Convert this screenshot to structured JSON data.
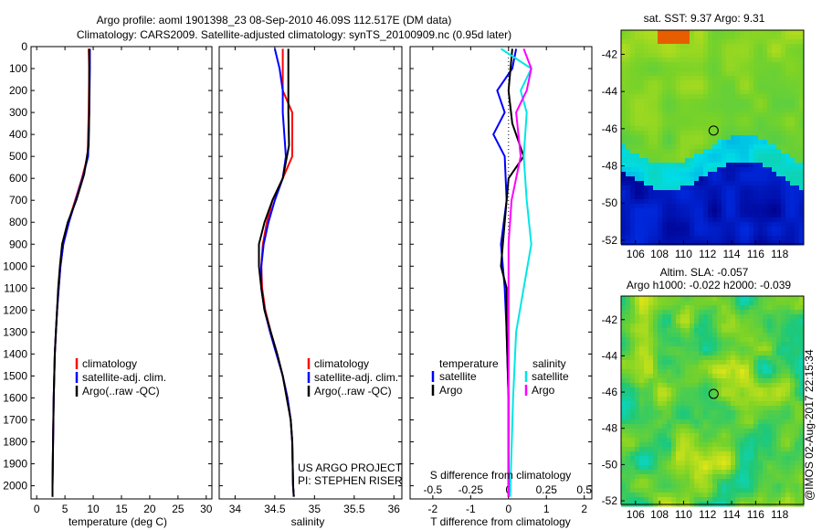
{
  "header": {
    "title_line1": "Argo profile: aoml 1901398_23 08-Sep-2010 46.09S 112.517E (DM data)",
    "title_line2": "Climatology: CARS2009. Satellite-adjusted climatology: synTS_20100909.nc (0.95d later)"
  },
  "colors": {
    "climatology": "#ff0000",
    "satellite": "#0000ff",
    "argo": "#000000",
    "salinity_satellite": "#00e6e6",
    "salinity_argo": "#ff00ff"
  },
  "sst_map_title": "sat. SST: 9.37 Argo: 9.31",
  "sla_map_title_line1": "Altim. SLA: -0.057",
  "sla_map_title_line2": "Argo h1000: -0.022 h2000: -0.039",
  "credit": "@IMOS 02-Aug-2017 22:15:34",
  "project_line1": "US ARGO PROJECT",
  "project_line2": "PI: STEPHEN RISER",
  "legend_temp": [
    "climatology",
    "satellite-adj. clim.",
    "Argo(..raw -QC)"
  ],
  "legend_sal": [
    "climatology",
    "satellite-adj. clim.",
    "Argo(..raw -QC)"
  ],
  "legend_diff": {
    "temperature_header": "temperature",
    "salinity_header": "salinity",
    "satellite": "satellite",
    "argo": "Argo"
  },
  "diff_top_label": "S difference from climatology",
  "chart_data": [
    {
      "type": "line",
      "xlabel": "temperature (deg C)",
      "ylabel": "",
      "xlim": [
        -1,
        31
      ],
      "ylim": [
        2060,
        0
      ],
      "xticks": [
        0,
        5,
        10,
        15,
        20,
        25,
        30
      ],
      "yticks": [
        0,
        100,
        200,
        300,
        400,
        500,
        600,
        700,
        800,
        900,
        1000,
        1100,
        1200,
        1300,
        1400,
        1500,
        1600,
        1700,
        1800,
        1900,
        2000
      ],
      "series": [
        {
          "name": "climatology",
          "points": [
            [
              9.2,
              10
            ],
            [
              9.3,
              100
            ],
            [
              9.2,
              300
            ],
            [
              9.0,
              500
            ],
            [
              8.0,
              600
            ],
            [
              6.8,
              700
            ],
            [
              5.6,
              800
            ],
            [
              4.7,
              900
            ],
            [
              4.2,
              1000
            ],
            [
              3.9,
              1100
            ],
            [
              3.6,
              1200
            ],
            [
              3.4,
              1300
            ],
            [
              3.2,
              1400
            ],
            [
              3.0,
              1600
            ],
            [
              2.9,
              1800
            ],
            [
              2.8,
              2000
            ],
            [
              2.8,
              2050
            ]
          ]
        },
        {
          "name": "satellite-adj. clim.",
          "points": [
            [
              9.4,
              10
            ],
            [
              9.4,
              100
            ],
            [
              9.3,
              300
            ],
            [
              9.1,
              500
            ],
            [
              8.1,
              600
            ],
            [
              6.9,
              700
            ],
            [
              5.7,
              800
            ],
            [
              4.7,
              900
            ],
            [
              4.2,
              1000
            ],
            [
              3.9,
              1100
            ],
            [
              3.6,
              1200
            ],
            [
              3.4,
              1300
            ],
            [
              3.2,
              1400
            ],
            [
              3.0,
              1600
            ],
            [
              2.9,
              1800
            ],
            [
              2.8,
              2000
            ],
            [
              2.8,
              2050
            ]
          ]
        },
        {
          "name": "Argo(..raw -QC)",
          "points": [
            [
              9.3,
              10
            ],
            [
              9.3,
              100
            ],
            [
              9.3,
              300
            ],
            [
              9.2,
              450
            ],
            [
              8.4,
              580
            ],
            [
              7.0,
              700
            ],
            [
              5.5,
              800
            ],
            [
              4.5,
              900
            ],
            [
              4.1,
              1000
            ],
            [
              3.8,
              1100
            ],
            [
              3.6,
              1200
            ],
            [
              3.4,
              1300
            ],
            [
              3.2,
              1400
            ],
            [
              3.0,
              1600
            ],
            [
              2.9,
              1800
            ],
            [
              2.8,
              2000
            ],
            [
              2.8,
              2050
            ]
          ]
        }
      ]
    },
    {
      "type": "line",
      "xlabel": "salinity",
      "ylabel": "",
      "xlim": [
        33.8,
        36.1
      ],
      "ylim": [
        2060,
        0
      ],
      "xticks": [
        34,
        34.5,
        35,
        35.5,
        36
      ],
      "series": [
        {
          "name": "climatology",
          "points": [
            [
              34.6,
              10
            ],
            [
              34.6,
              100
            ],
            [
              34.6,
              200
            ],
            [
              34.72,
              300
            ],
            [
              34.72,
              500
            ],
            [
              34.6,
              600
            ],
            [
              34.47,
              700
            ],
            [
              34.4,
              800
            ],
            [
              34.35,
              900
            ],
            [
              34.33,
              1000
            ],
            [
              34.34,
              1100
            ],
            [
              34.38,
              1200
            ],
            [
              34.45,
              1300
            ],
            [
              34.53,
              1400
            ],
            [
              34.6,
              1500
            ],
            [
              34.66,
              1600
            ],
            [
              34.7,
              1700
            ],
            [
              34.72,
              1800
            ],
            [
              34.73,
              2000
            ],
            [
              34.74,
              2050
            ]
          ]
        },
        {
          "name": "satellite-adj. clim.",
          "points": [
            [
              34.5,
              10
            ],
            [
              34.56,
              100
            ],
            [
              34.6,
              200
            ],
            [
              34.6,
              300
            ],
            [
              34.64,
              500
            ],
            [
              34.6,
              600
            ],
            [
              34.5,
              700
            ],
            [
              34.42,
              800
            ],
            [
              34.36,
              900
            ],
            [
              34.33,
              1000
            ],
            [
              34.33,
              1100
            ],
            [
              34.37,
              1200
            ],
            [
              34.44,
              1300
            ],
            [
              34.52,
              1400
            ],
            [
              34.6,
              1500
            ],
            [
              34.66,
              1600
            ],
            [
              34.7,
              1700
            ],
            [
              34.72,
              1800
            ],
            [
              34.73,
              2000
            ],
            [
              34.74,
              2050
            ]
          ]
        },
        {
          "name": "Argo(..raw -QC)",
          "points": [
            [
              34.67,
              10
            ],
            [
              34.67,
              100
            ],
            [
              34.67,
              300
            ],
            [
              34.68,
              450
            ],
            [
              34.6,
              600
            ],
            [
              34.47,
              700
            ],
            [
              34.37,
              800
            ],
            [
              34.3,
              900
            ],
            [
              34.3,
              1000
            ],
            [
              34.33,
              1100
            ],
            [
              34.37,
              1200
            ],
            [
              34.45,
              1300
            ],
            [
              34.53,
              1400
            ],
            [
              34.6,
              1500
            ],
            [
              34.65,
              1600
            ],
            [
              34.7,
              1700
            ],
            [
              34.72,
              1800
            ],
            [
              34.73,
              2000
            ],
            [
              34.74,
              2050
            ]
          ]
        }
      ]
    },
    {
      "type": "line",
      "xlabel": "T difference from climatology",
      "xlabel_top": "S difference from climatology",
      "ylabel": "",
      "xlim": [
        -2.6,
        2.2
      ],
      "ylim": [
        2060,
        0
      ],
      "xticks": [
        -2,
        -1,
        0,
        1,
        2
      ],
      "xticks_top": [
        -0.5,
        -0.25,
        0,
        0.25,
        0.5
      ],
      "series": [
        {
          "name": "temperature satellite",
          "points": [
            [
              0.2,
              10
            ],
            [
              0.1,
              100
            ],
            [
              -0.3,
              200
            ],
            [
              -0.1,
              300
            ],
            [
              -0.4,
              400
            ],
            [
              -0.1,
              500
            ],
            [
              -0.05,
              700
            ],
            [
              -0.2,
              900
            ],
            [
              -0.1,
              1100
            ],
            [
              -0.05,
              1300
            ],
            [
              0,
              1600
            ],
            [
              0,
              2050
            ]
          ]
        },
        {
          "name": "temperature Argo",
          "points": [
            [
              0.1,
              10
            ],
            [
              0.0,
              200
            ],
            [
              0.1,
              350
            ],
            [
              0.4,
              500
            ],
            [
              0.0,
              600
            ],
            [
              -0.1,
              800
            ],
            [
              -0.2,
              1000
            ],
            [
              -0.05,
              1100
            ],
            [
              -0.05,
              1300
            ],
            [
              0,
              1600
            ],
            [
              0,
              2050
            ]
          ]
        },
        {
          "name": "salinity satellite",
          "points": [
            [
              -0.05,
              10
            ],
            [
              0.15,
              100
            ],
            [
              0.08,
              200
            ],
            [
              0.12,
              300
            ],
            [
              0.1,
              500
            ],
            [
              0.12,
              700
            ],
            [
              0.15,
              900
            ],
            [
              0.1,
              1100
            ],
            [
              0.05,
              1300
            ],
            [
              0.03,
              1600
            ],
            [
              0.01,
              2050
            ]
          ]
        },
        {
          "name": "salinity Argo",
          "points": [
            [
              0.1,
              10
            ],
            [
              0.15,
              100
            ],
            [
              0.12,
              200
            ],
            [
              0.05,
              300
            ],
            [
              0.08,
              500
            ],
            [
              0.02,
              700
            ],
            [
              0.0,
              900
            ],
            [
              0.0,
              1200
            ],
            [
              0.0,
              1600
            ],
            [
              0.0,
              2050
            ]
          ]
        }
      ]
    },
    {
      "type": "heatmap",
      "title": "sat. SST: 9.37 Argo: 9.31",
      "xticks": [
        106,
        108,
        110,
        112,
        114,
        116,
        118
      ],
      "yticks": [
        -42,
        -44,
        -46,
        -48,
        -50,
        -52
      ],
      "xlim": [
        104.8,
        120
      ],
      "ylim": [
        -52.2,
        -40.7
      ],
      "marker": {
        "lon": 112.5,
        "lat": -46.1
      }
    },
    {
      "type": "heatmap",
      "title": "Altim. SLA: -0.057",
      "subtitle": "Argo h1000: -0.022 h2000: -0.039",
      "xticks": [
        106,
        108,
        110,
        112,
        114,
        116,
        118
      ],
      "yticks": [
        -42,
        -44,
        -46,
        -48,
        -50,
        -52
      ],
      "xlim": [
        104.8,
        120
      ],
      "ylim": [
        -52.2,
        -40.7
      ],
      "marker": {
        "lon": 112.5,
        "lat": -46.1
      }
    }
  ]
}
